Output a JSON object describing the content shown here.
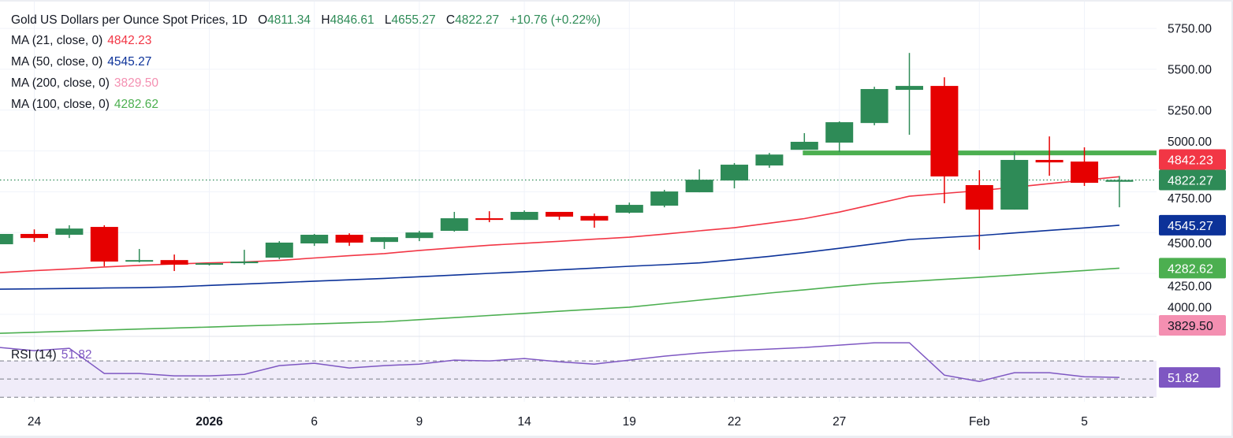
{
  "header": {
    "title": "Gold US Dollars per Ounce Spot Prices, 1D",
    "open_key": "O",
    "open": "4811.34",
    "high_key": "H",
    "high": "4846.61",
    "low_key": "L",
    "low": "4655.27",
    "close_key": "C",
    "close": "4822.27",
    "change": "+10.76 (+0.22%)"
  },
  "indicators": [
    {
      "label": "MA (21, close, 0)",
      "value": "4842.23",
      "color": "#f23645"
    },
    {
      "label": "MA (50, close, 0)",
      "value": "4545.27",
      "color": "#0c3299"
    },
    {
      "label": "MA (200, close, 0)",
      "value": "3829.50",
      "color": "#f48fb1"
    },
    {
      "label": "MA (100, close, 0)",
      "value": "4282.62",
      "color": "#4caf50"
    }
  ],
  "rsi": {
    "label": "RSI (14)",
    "value": "51.82",
    "color": "#7e57c2",
    "band_color": "#f0ecf9"
  },
  "colors": {
    "up": "#2e8b57",
    "down": "#e60000",
    "level_line": "#4caf50",
    "grid": "#f0f3fa",
    "close_line": "#2e8b57"
  },
  "chart_data": {
    "type": "candlestick",
    "title": "Gold US Dollars per Ounce Spot Prices, 1D",
    "price_range": [
      3865,
      5924
    ],
    "price_ticks": [
      "5750.00",
      "5500.00",
      "5250.00",
      "5000.00",
      "4750.00",
      "4500.00",
      "4250.00",
      "4000.00"
    ],
    "x_ticks": [
      {
        "label": "24",
        "bar": 1
      },
      {
        "label": "2026",
        "bar": 6
      },
      {
        "label": "6",
        "bar": 9
      },
      {
        "label": "9",
        "bar": 12
      },
      {
        "label": "14",
        "bar": 15
      },
      {
        "label": "19",
        "bar": 18
      },
      {
        "label": "22",
        "bar": 21
      },
      {
        "label": "27",
        "bar": 24
      },
      {
        "label": "Feb",
        "bar": 28
      },
      {
        "label": "5",
        "bar": 31
      }
    ],
    "candles": [
      [
        4429,
        4492,
        4429,
        4492
      ],
      [
        4492,
        4520,
        4443,
        4467
      ],
      [
        4487,
        4545,
        4467,
        4525
      ],
      [
        4535,
        4545,
        4294,
        4323
      ],
      [
        4323,
        4400,
        4318,
        4332
      ],
      [
        4332,
        4366,
        4265,
        4304
      ],
      [
        4304,
        4313,
        4299,
        4313
      ],
      [
        4313,
        4395,
        4304,
        4323
      ],
      [
        4347,
        4448,
        4337,
        4439
      ],
      [
        4434,
        4492,
        4419,
        4487
      ],
      [
        4487,
        4496,
        4419,
        4439
      ],
      [
        4443,
        4472,
        4400,
        4472
      ],
      [
        4467,
        4511,
        4448,
        4501
      ],
      [
        4511,
        4627,
        4506,
        4588
      ],
      [
        4588,
        4631,
        4564,
        4578
      ],
      [
        4578,
        4636,
        4578,
        4627
      ],
      [
        4627,
        4627,
        4578,
        4598
      ],
      [
        4602,
        4617,
        4530,
        4574
      ],
      [
        4622,
        4684,
        4617,
        4670
      ],
      [
        4665,
        4762,
        4655,
        4752
      ],
      [
        4747,
        4887,
        4747,
        4824
      ],
      [
        4819,
        4926,
        4771,
        4916
      ],
      [
        4911,
        4988,
        4897,
        4978
      ],
      [
        5007,
        5109,
        5007,
        5056
      ],
      [
        5051,
        5181,
        4993,
        5176
      ],
      [
        5171,
        5393,
        5157,
        5379
      ],
      [
        5374,
        5600,
        5099,
        5398
      ],
      [
        5398,
        5451,
        4680,
        4844
      ],
      [
        4791,
        4882,
        4395,
        4641
      ],
      [
        4641,
        4993,
        4641,
        4945
      ],
      [
        4945,
        5089,
        4848,
        4930
      ],
      [
        4935,
        5022,
        4786,
        4805
      ],
      [
        4811.34,
        4846.61,
        4655.27,
        4822.27
      ]
    ],
    "ma21": [
      4255,
      4267,
      4278,
      4290,
      4300,
      4308,
      4315,
      4320,
      4330,
      4345,
      4359,
      4372,
      4391,
      4407,
      4423,
      4435,
      4447,
      4460,
      4472,
      4491,
      4511,
      4530,
      4558,
      4586,
      4626,
      4674,
      4723,
      4740,
      4757,
      4778,
      4800,
      4821,
      4842.23
    ],
    "ma50": [
      4154,
      4156,
      4158,
      4161,
      4163,
      4168,
      4177,
      4185,
      4194,
      4203,
      4211,
      4220,
      4230,
      4240,
      4251,
      4261,
      4272,
      4283,
      4294,
      4304,
      4315,
      4334,
      4355,
      4378,
      4404,
      4431,
      4458,
      4470,
      4482,
      4498,
      4514,
      4529,
      4545.27
    ],
    "ma100": [
      3884,
      3890,
      3897,
      3903,
      3910,
      3916,
      3922,
      3929,
      3935,
      3941,
      3948,
      3954,
      3967,
      3980,
      3993,
      4006,
      4019,
      4032,
      4044,
      4065,
      4087,
      4108,
      4130,
      4150,
      4170,
      4189,
      4201,
      4214,
      4226,
      4240,
      4254,
      4268,
      4282.62
    ],
    "ma200_last": 3829.5,
    "level_line": {
      "price": 4988,
      "from_bar": 23
    },
    "rsi_range": [
      25,
      97
    ],
    "rsi_levels": [
      70,
      50,
      30
    ],
    "rsi_values": [
      84.8,
      81.3,
      83.9,
      56.1,
      56.1,
      53.5,
      53.5,
      55.2,
      64.8,
      67.4,
      62.2,
      64.8,
      66.5,
      70.9,
      70.0,
      72.6,
      69.1,
      66.5,
      70.9,
      75.2,
      78.7,
      81.3,
      83.0,
      84.8,
      87.4,
      90.0,
      90.0,
      54.3,
      47.4,
      57.0,
      57.0,
      52.6,
      51.82
    ],
    "grid": true
  }
}
